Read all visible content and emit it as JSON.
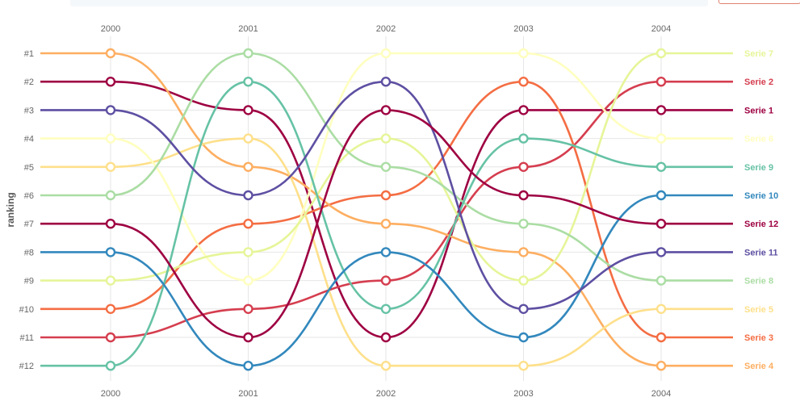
{
  "chart_data": {
    "type": "line",
    "ylabel": "ranking",
    "years": [
      "2000",
      "2001",
      "2002",
      "2003",
      "2004"
    ],
    "rank_labels": [
      "#1",
      "#2",
      "#3",
      "#4",
      "#5",
      "#6",
      "#7",
      "#8",
      "#9",
      "#10",
      "#11",
      "#12"
    ],
    "series": [
      {
        "name": "Serie 1",
        "color": "#9e0142",
        "ranks": [
          2,
          3,
          11,
          3,
          3
        ]
      },
      {
        "name": "Serie 2",
        "color": "#d53e4f",
        "ranks": [
          11,
          10,
          9,
          5,
          2
        ]
      },
      {
        "name": "Serie 3",
        "color": "#f46d43",
        "ranks": [
          10,
          7,
          6,
          2,
          11
        ]
      },
      {
        "name": "Serie 4",
        "color": "#fdae61",
        "ranks": [
          1,
          5,
          7,
          8,
          12
        ]
      },
      {
        "name": "Serie 5",
        "color": "#fee08b",
        "ranks": [
          5,
          4,
          12,
          12,
          10
        ]
      },
      {
        "name": "Serie 6",
        "color": "#ffffbf",
        "ranks": [
          4,
          9,
          1,
          1,
          4
        ]
      },
      {
        "name": "Serie 7",
        "color": "#e6f598",
        "ranks": [
          9,
          8,
          4,
          9,
          1
        ]
      },
      {
        "name": "Serie 8",
        "color": "#abdda4",
        "ranks": [
          6,
          1,
          5,
          7,
          9
        ]
      },
      {
        "name": "Serie 9",
        "color": "#66c2a5",
        "ranks": [
          12,
          2,
          10,
          4,
          5
        ]
      },
      {
        "name": "Serie 10",
        "color": "#3288bd",
        "ranks": [
          8,
          12,
          8,
          11,
          6
        ]
      },
      {
        "name": "Serie 11",
        "color": "#5e4fa2",
        "ranks": [
          3,
          6,
          2,
          10,
          8
        ]
      },
      {
        "name": "Serie 12",
        "color": "#9e0142",
        "ranks": [
          7,
          11,
          3,
          6,
          7
        ]
      }
    ],
    "grid": true,
    "legend": "right"
  }
}
